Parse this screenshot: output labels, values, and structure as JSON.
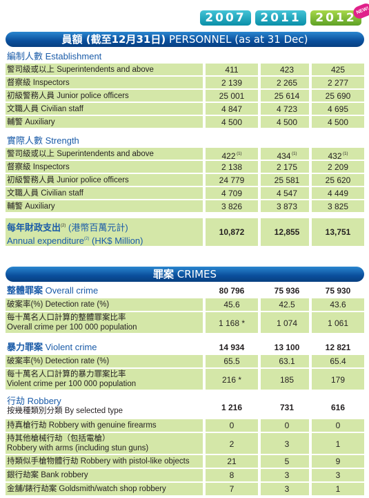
{
  "years": [
    "2007",
    "2011",
    "2012"
  ],
  "badge": "NEW!",
  "personnel": {
    "title_zh": "員額 (截至12月31日)",
    "title_en": "PERSONNEL (as at 31 Dec)",
    "establishment": {
      "heading_zh": "編制人數",
      "heading_en": "Establishment",
      "rows": [
        {
          "zh": "警司級或以上",
          "en": "Superintendents and above",
          "values": [
            "411",
            "423",
            "425"
          ]
        },
        {
          "zh": "督察級",
          "en": "Inspectors",
          "values": [
            "2 139",
            "2 265",
            "2 277"
          ]
        },
        {
          "zh": "初級警務人員",
          "en": "Junior police officers",
          "values": [
            "25 001",
            "25 614",
            "25 690"
          ]
        },
        {
          "zh": "文職人員",
          "en": "Civilian staff",
          "values": [
            "4 847",
            "4 723",
            "4 695"
          ]
        },
        {
          "zh": "輔警",
          "en": "Auxiliary",
          "values": [
            "4 500",
            "4 500",
            "4 500"
          ]
        }
      ]
    },
    "strength": {
      "heading_zh": "實際人數",
      "heading_en": "Strength",
      "rows": [
        {
          "zh": "警司級或以上",
          "en": "Superintendents and above",
          "values": [
            "422",
            "434",
            "432"
          ],
          "note": "(1)"
        },
        {
          "zh": "督察級",
          "en": "Inspectors",
          "values": [
            "2 138",
            "2 175",
            "2 209"
          ]
        },
        {
          "zh": "初級警務人員",
          "en": "Junior police officers",
          "values": [
            "24 779",
            "25 581",
            "25 620"
          ]
        },
        {
          "zh": "文職人員",
          "en": "Civilian staff",
          "values": [
            "4 709",
            "4 547",
            "4 449"
          ]
        },
        {
          "zh": "輔警",
          "en": "Auxiliary",
          "values": [
            "3 826",
            "3 873",
            "3 825"
          ]
        }
      ]
    },
    "expenditure": {
      "zh": "每年財政支出",
      "zh_note": "(2)",
      "zh_unit": "(港幣百萬元計)",
      "en": "Annual expenditure",
      "en_note": "(2)",
      "en_unit": "(HK$ Million)",
      "values": [
        "10,872",
        "12,855",
        "13,751"
      ]
    }
  },
  "crimes": {
    "title_zh": "罪案",
    "title_en": "CRIMES",
    "overall": {
      "heading_zh": "整體罪案",
      "heading_en": "Overall crime",
      "values": [
        "80 796",
        "75 936",
        "75 930"
      ],
      "detection": {
        "label": "破案率(%) Detection rate (%)",
        "values": [
          "45.6",
          "42.5",
          "43.6"
        ]
      },
      "per100k": {
        "zh": "每十萬名人口計算的整體罪案比率",
        "en": "Overall crime per 100 000 population",
        "values": [
          "1 168 *",
          "1 074",
          "1 061"
        ]
      }
    },
    "violent": {
      "heading_zh": "暴力罪案",
      "heading_en": "Violent crime",
      "values": [
        "14 934",
        "13 100",
        "12 821"
      ],
      "detection": {
        "label": "破案率(%) Detection rate (%)",
        "values": [
          "65.5",
          "63.1",
          "65.4"
        ]
      },
      "per100k": {
        "zh": "每十萬名人口計算的暴力罪案比率",
        "en": "Violent crime per 100 000 population",
        "values": [
          "216 *",
          "185",
          "179"
        ]
      }
    },
    "robbery": {
      "heading_zh": "行劫",
      "heading_en": "Robbery",
      "sub": "按幾種類別分類 By selected type",
      "values": [
        "1 216",
        "731",
        "616"
      ],
      "rows": [
        {
          "label": "持真槍行劫 Robbery with genuine firearms",
          "values": [
            "0",
            "0",
            "0"
          ]
        },
        {
          "label": "持其他槍械行劫（包括電槍）",
          "label2": "Robbery with arms (including stun guns)",
          "values": [
            "2",
            "3",
            "1"
          ]
        },
        {
          "label": "持類似手槍物體行劫 Robbery with pistol-like objects",
          "values": [
            "21",
            "5",
            "9"
          ]
        },
        {
          "label": "銀行劫案 Bank robbery",
          "values": [
            "8",
            "3",
            "3"
          ]
        },
        {
          "label": "金舖/錶行劫案 Goldsmith/watch shop robbery",
          "values": [
            "7",
            "3",
            "1"
          ]
        }
      ]
    }
  }
}
